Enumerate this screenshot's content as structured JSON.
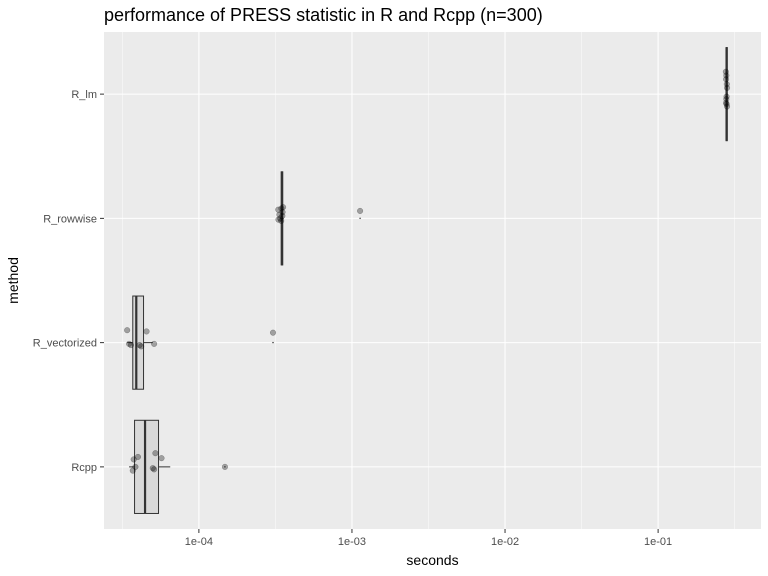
{
  "chart_data": {
    "type": "boxplot",
    "title": "performance of PRESS statistic in R and Rcpp (n=300)",
    "xlabel": "seconds",
    "ylabel": "method",
    "x_scale": "log10",
    "xlim": [
      2.4e-05,
      0.47
    ],
    "x_ticks": [
      {
        "value": 0.0001,
        "label": "1e-04"
      },
      {
        "value": 0.001,
        "label": "1e-03"
      },
      {
        "value": 0.01,
        "label": "1e-02"
      },
      {
        "value": 0.1,
        "label": "1e-01"
      }
    ],
    "grid": true,
    "legend": "none",
    "categories": [
      "R_lm",
      "R_rowwise",
      "R_vectorized",
      "Rcpp"
    ],
    "series": [
      {
        "method": "R_lm",
        "box": {
          "q1": 0.278,
          "median": 0.28,
          "q3": 0.283,
          "whisker_low": 0.277,
          "whisker_high": 0.285
        },
        "outliers": [],
        "points": [
          {
            "x": 0.277,
            "jitter": -0.18
          },
          {
            "x": 0.279,
            "jitter": -0.15
          },
          {
            "x": 0.278,
            "jitter": -0.12
          },
          {
            "x": 0.281,
            "jitter": -0.08
          },
          {
            "x": 0.282,
            "jitter": -0.05
          },
          {
            "x": 0.28,
            "jitter": 0.02
          },
          {
            "x": 0.279,
            "jitter": 0.04
          },
          {
            "x": 0.278,
            "jitter": 0.07
          },
          {
            "x": 0.282,
            "jitter": 0.1
          },
          {
            "x": 0.28,
            "jitter": 0.08
          }
        ]
      },
      {
        "method": "R_rowwise",
        "box": {
          "q1": 0.000345,
          "median": 0.000349,
          "q3": 0.000353,
          "whisker_low": 0.00034,
          "whisker_high": 0.000358
        },
        "outliers": [
          0.00113
        ],
        "points": [
          {
            "x": 0.00033,
            "jitter": -0.07
          },
          {
            "x": 0.000336,
            "jitter": -0.03
          },
          {
            "x": 0.00034,
            "jitter": 0.0
          },
          {
            "x": 0.000346,
            "jitter": -0.08
          },
          {
            "x": 0.000351,
            "jitter": -0.02
          },
          {
            "x": 0.000355,
            "jitter": -0.09
          },
          {
            "x": 0.000331,
            "jitter": 0.01
          },
          {
            "x": 0.000345,
            "jitter": 0.02
          },
          {
            "x": 0.000352,
            "jitter": -0.05
          },
          {
            "x": 0.00113,
            "jitter": -0.06
          }
        ]
      },
      {
        "method": "R_vectorized",
        "box": {
          "q1": 3.7e-05,
          "median": 3.9e-05,
          "q3": 4.35e-05,
          "whisker_low": 3.4e-05,
          "whisker_high": 5e-05
        },
        "outliers": [
          0.000305
        ],
        "points": [
          {
            "x": 3.4e-05,
            "jitter": -0.1
          },
          {
            "x": 3.5e-05,
            "jitter": 0.01
          },
          {
            "x": 3.6e-05,
            "jitter": 0.02
          },
          {
            "x": 4.2e-05,
            "jitter": 0.03
          },
          {
            "x": 4.55e-05,
            "jitter": -0.09
          },
          {
            "x": 5.1e-05,
            "jitter": 0.01
          },
          {
            "x": 4.1e-05,
            "jitter": 0.02
          },
          {
            "x": 0.000305,
            "jitter": -0.08
          }
        ]
      },
      {
        "method": "Rcpp",
        "box": {
          "q1": 3.8e-05,
          "median": 4.45e-05,
          "q3": 5.45e-05,
          "whisker_low": 3.5e-05,
          "whisker_high": 6.5e-05
        },
        "outliers": [
          0.000148
        ],
        "points": [
          {
            "x": 3.7e-05,
            "jitter": 0.03
          },
          {
            "x": 3.85e-05,
            "jitter": 0.0
          },
          {
            "x": 4e-05,
            "jitter": -0.08
          },
          {
            "x": 3.75e-05,
            "jitter": -0.06
          },
          {
            "x": 5.2e-05,
            "jitter": -0.11
          },
          {
            "x": 5.1e-05,
            "jitter": 0.02
          },
          {
            "x": 5.7e-05,
            "jitter": -0.07
          },
          {
            "x": 5e-05,
            "jitter": 0.01
          },
          {
            "x": 0.000148,
            "jitter": 0.0
          }
        ]
      }
    ]
  },
  "colors": {
    "panel_bg": "#ebebeb",
    "grid_major": "#ffffff",
    "box_fill": "#d9d9d9",
    "box_line": "#333333",
    "point_fill": "#000000",
    "tick_text": "#4d4d4d",
    "axis_text": "#000000"
  }
}
